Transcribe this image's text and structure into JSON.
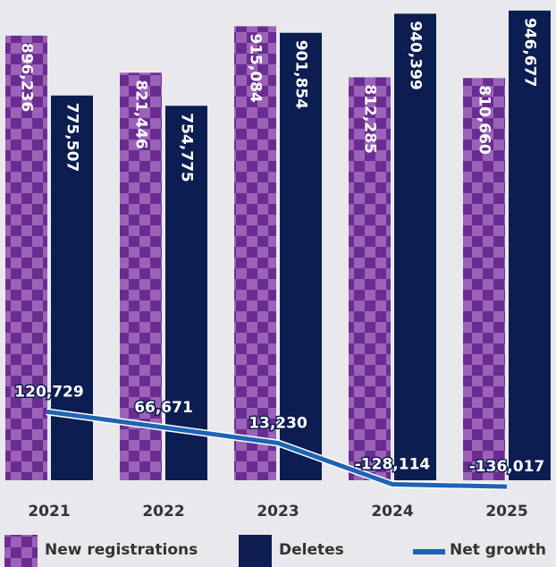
{
  "chart_data": {
    "type": "bar",
    "categories": [
      "2021",
      "2022",
      "2023",
      "2024",
      "2025"
    ],
    "series": [
      {
        "name": "New registrations",
        "color": "#6b2c91",
        "values": [
          896236,
          821446,
          915084,
          812285,
          810660
        ],
        "value_labels": [
          "896,236",
          "821,446",
          "915,084",
          "812,285",
          "810,660"
        ]
      },
      {
        "name": "Deletes",
        "color": "#0b1d51",
        "values": [
          775507,
          754775,
          901854,
          940399,
          946677
        ],
        "value_labels": [
          "775,507",
          "754,775",
          "901,854",
          "940,399",
          "946,677"
        ]
      },
      {
        "name": "Net growth",
        "type": "line",
        "axis": "y2",
        "color": "#1f63b5",
        "values": [
          120729,
          66671,
          13230,
          -128114,
          -136017
        ],
        "value_labels": [
          "120,729",
          "66,671",
          "13,230",
          "-128,114",
          "-136,017"
        ]
      }
    ],
    "ylim": [
      0,
      950000
    ],
    "y2lim": [
      -200000,
      1500000
    ]
  }
}
